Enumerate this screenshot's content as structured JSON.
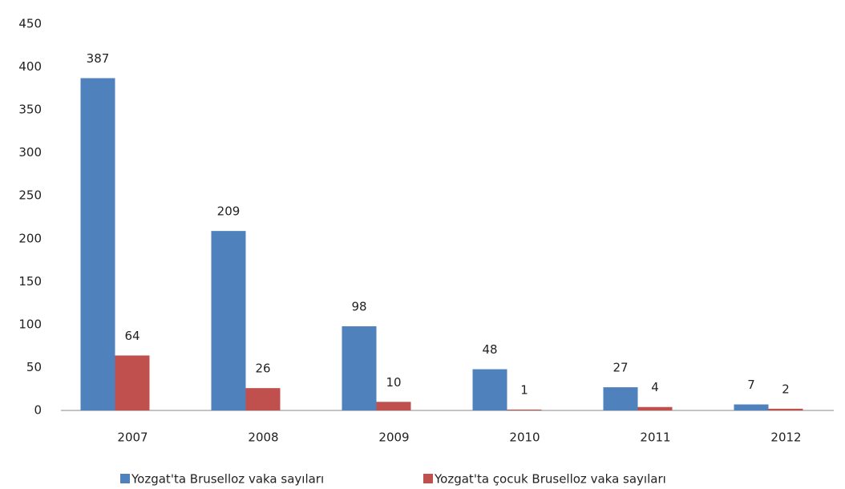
{
  "chart_data": {
    "type": "bar",
    "categories": [
      "2007",
      "2008",
      "2009",
      "2010",
      "2011",
      "2012"
    ],
    "series": [
      {
        "name": "Yozgat'ta Bruselloz vaka sayıları",
        "color": "#4f81bd",
        "values": [
          387,
          209,
          98,
          48,
          27,
          7
        ]
      },
      {
        "name": "Yozgat'ta çocuk Bruselloz vaka sayıları",
        "color": "#c0504d",
        "values": [
          64,
          26,
          10,
          1,
          4,
          2
        ]
      }
    ],
    "ylim": [
      0,
      450
    ],
    "yticks": [
      0,
      50,
      100,
      150,
      200,
      250,
      300,
      350,
      400,
      450
    ],
    "grid": false,
    "legend": "bottom"
  }
}
